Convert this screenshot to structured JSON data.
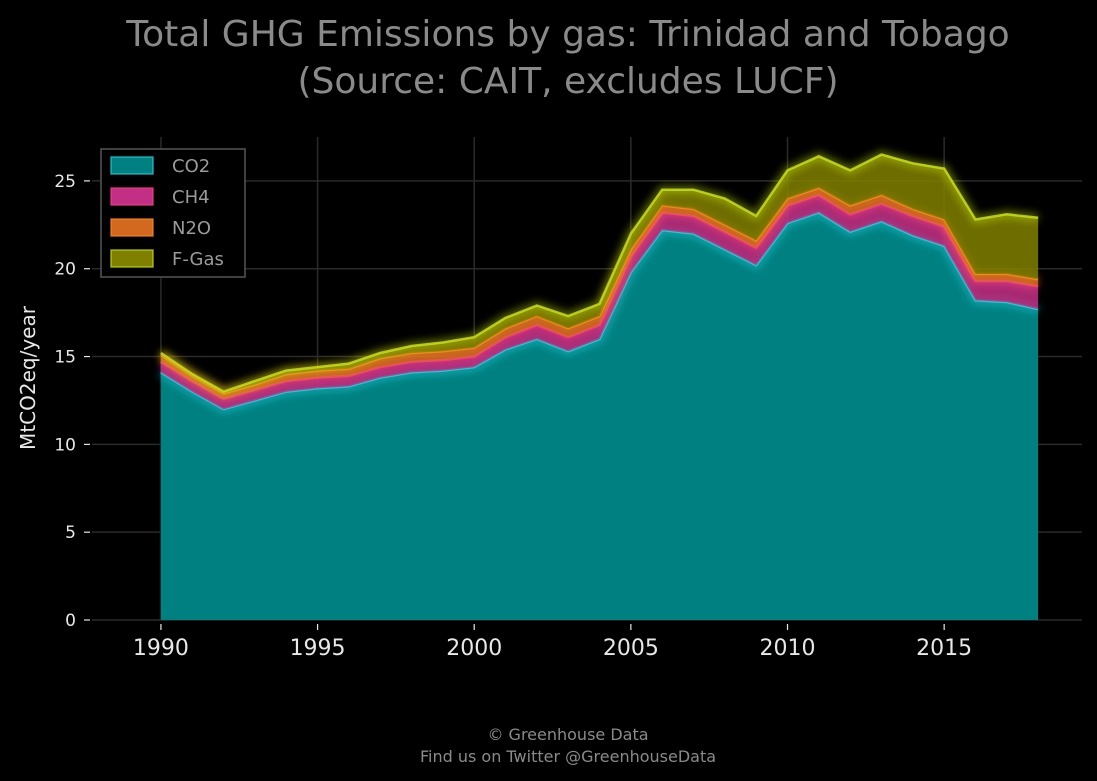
{
  "chart_data": {
    "type": "area",
    "stacked": true,
    "title": "Total GHG Emissions by gas: Trinidad and Tobago",
    "subtitle": "(Source: CAIT, excludes LUCF)",
    "xlabel": "",
    "ylabel": "MtCO2eq/year",
    "xlim": [
      1987.8,
      2019.4
    ],
    "ylim": [
      0,
      27.5
    ],
    "x_ticks": [
      "1990",
      "1995",
      "2000",
      "2005",
      "2010",
      "2015"
    ],
    "y_ticks": [
      "0",
      "5",
      "10",
      "15",
      "20",
      "25"
    ],
    "grid": true,
    "legend_position": "top-left",
    "x": [
      1990,
      1991,
      1992,
      1993,
      1994,
      1995,
      1996,
      1997,
      1998,
      1999,
      2000,
      2001,
      2002,
      2003,
      2004,
      2005,
      2006,
      2007,
      2008,
      2009,
      2010,
      2011,
      2012,
      2013,
      2014,
      2015,
      2016,
      2017,
      2018
    ],
    "series": [
      {
        "name": "CO2",
        "color": "#008080",
        "values": [
          14.1,
          13.0,
          12.0,
          12.5,
          13.0,
          13.2,
          13.3,
          13.8,
          14.1,
          14.2,
          14.4,
          15.4,
          16.0,
          15.3,
          16.0,
          19.8,
          22.2,
          22.0,
          21.1,
          20.2,
          22.6,
          23.2,
          22.1,
          22.7,
          21.9,
          21.3,
          18.2,
          18.1,
          17.7
        ]
      },
      {
        "name": "CH4",
        "color": "#c42f86",
        "values": [
          0.6,
          0.6,
          0.6,
          0.6,
          0.6,
          0.6,
          0.6,
          0.6,
          0.6,
          0.6,
          0.6,
          0.7,
          0.8,
          0.8,
          0.8,
          0.9,
          1.0,
          1.0,
          1.0,
          1.0,
          1.0,
          1.0,
          1.0,
          1.0,
          1.1,
          1.1,
          1.1,
          1.2,
          1.3
        ]
      },
      {
        "name": "N2O",
        "color": "#d2691e",
        "values": [
          0.4,
          0.3,
          0.3,
          0.3,
          0.4,
          0.4,
          0.4,
          0.5,
          0.5,
          0.5,
          0.5,
          0.5,
          0.5,
          0.5,
          0.5,
          0.4,
          0.4,
          0.4,
          0.4,
          0.4,
          0.4,
          0.4,
          0.5,
          0.5,
          0.4,
          0.4,
          0.4,
          0.4,
          0.4
        ]
      },
      {
        "name": "F-Gas",
        "color": "#808000",
        "values": [
          0.1,
          0.1,
          0.1,
          0.2,
          0.2,
          0.2,
          0.3,
          0.3,
          0.4,
          0.5,
          0.6,
          0.6,
          0.6,
          0.7,
          0.7,
          0.9,
          0.9,
          1.1,
          1.5,
          1.4,
          1.6,
          1.8,
          2.0,
          2.3,
          2.6,
          2.9,
          3.1,
          3.4,
          3.5
        ]
      }
    ]
  },
  "footer": {
    "line1": "© Greenhouse Data",
    "line2": "Find us on Twitter @GreenhouseData"
  }
}
